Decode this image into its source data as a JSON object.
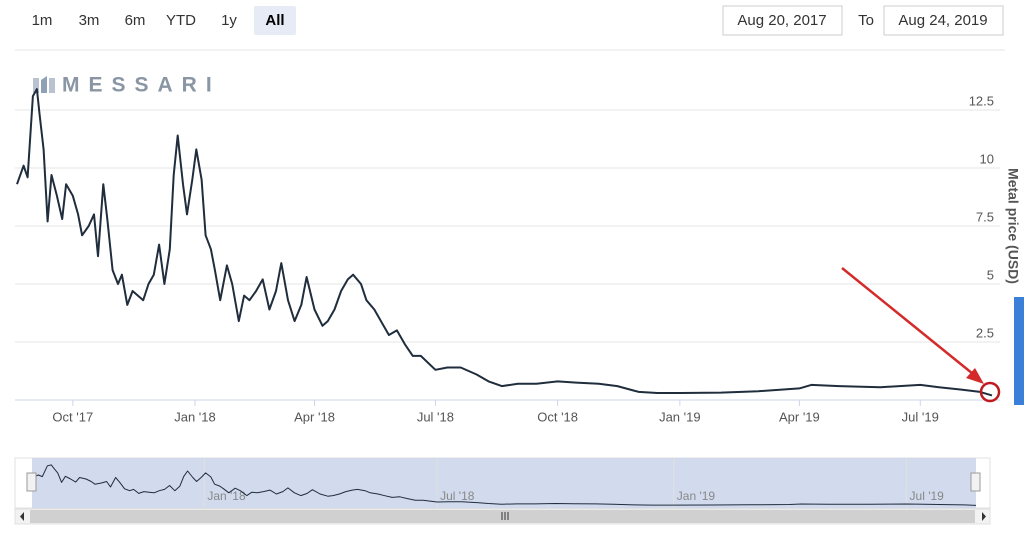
{
  "range_selector": {
    "buttons": [
      "1m",
      "3m",
      "6m",
      "YTD",
      "1y",
      "All"
    ]
  },
  "date_range": {
    "from": "Aug 20, 2017",
    "to_label": "To",
    "to": "Aug 24, 2019"
  },
  "watermark": "MESSARI",
  "chart_data": {
    "type": "line",
    "y_axis_label": "Metal price (USD)",
    "color": "#1f2d3d",
    "xlim": [
      "2017-08-20",
      "2019-08-24"
    ],
    "xticks": [
      {
        "value": "2017-10-01",
        "label": "Oct '17"
      },
      {
        "value": "2018-01-01",
        "label": "Jan '18"
      },
      {
        "value": "2018-04-01",
        "label": "Apr '18"
      },
      {
        "value": "2018-07-01",
        "label": "Jul '18"
      },
      {
        "value": "2018-10-01",
        "label": "Oct '18"
      },
      {
        "value": "2019-01-01",
        "label": "Jan '19"
      },
      {
        "value": "2019-04-01",
        "label": "Apr '19"
      },
      {
        "value": "2019-07-01",
        "label": "Jul '19"
      }
    ],
    "ylim": [
      0,
      15
    ],
    "yticks": [
      2.5,
      5,
      7.5,
      10,
      12.5
    ],
    "grid": true,
    "x": [
      "2017-08-20",
      "2017-08-25",
      "2017-08-28",
      "2017-09-01",
      "2017-09-04",
      "2017-09-06",
      "2017-09-09",
      "2017-09-12",
      "2017-09-15",
      "2017-09-19",
      "2017-09-23",
      "2017-09-26",
      "2017-10-01",
      "2017-10-05",
      "2017-10-08",
      "2017-10-13",
      "2017-10-17",
      "2017-10-20",
      "2017-10-24",
      "2017-10-27",
      "2017-10-31",
      "2017-11-04",
      "2017-11-07",
      "2017-11-11",
      "2017-11-15",
      "2017-11-19",
      "2017-11-23",
      "2017-11-27",
      "2017-12-01",
      "2017-12-05",
      "2017-12-09",
      "2017-12-13",
      "2017-12-16",
      "2017-12-19",
      "2017-12-23",
      "2017-12-26",
      "2017-12-30",
      "2018-01-02",
      "2018-01-06",
      "2018-01-09",
      "2018-01-13",
      "2018-01-16",
      "2018-01-20",
      "2018-01-25",
      "2018-01-29",
      "2018-02-03",
      "2018-02-07",
      "2018-02-11",
      "2018-02-16",
      "2018-02-21",
      "2018-02-26",
      "2018-03-03",
      "2018-03-07",
      "2018-03-12",
      "2018-03-17",
      "2018-03-22",
      "2018-03-26",
      "2018-04-01",
      "2018-04-07",
      "2018-04-11",
      "2018-04-16",
      "2018-04-21",
      "2018-04-26",
      "2018-04-30",
      "2018-05-06",
      "2018-05-10",
      "2018-05-16",
      "2018-05-20",
      "2018-05-27",
      "2018-06-02",
      "2018-06-08",
      "2018-06-14",
      "2018-06-20",
      "2018-07-01",
      "2018-07-10",
      "2018-07-20",
      "2018-08-01",
      "2018-08-10",
      "2018-08-20",
      "2018-09-01",
      "2018-09-15",
      "2018-10-01",
      "2018-10-15",
      "2018-11-01",
      "2018-11-15",
      "2018-12-01",
      "2018-12-15",
      "2019-01-01",
      "2019-02-01",
      "2019-03-01",
      "2019-04-01",
      "2019-04-10",
      "2019-05-01",
      "2019-06-01",
      "2019-07-01",
      "2019-07-15",
      "2019-08-01",
      "2019-08-15",
      "2019-08-24"
    ],
    "values": [
      9.3,
      10.1,
      9.6,
      13.1,
      13.4,
      12.3,
      10.8,
      7.7,
      9.7,
      8.8,
      7.8,
      9.3,
      8.8,
      8.0,
      7.1,
      7.5,
      8.0,
      6.2,
      9.3,
      7.8,
      5.6,
      5.0,
      5.4,
      4.1,
      4.7,
      4.5,
      4.3,
      5.0,
      5.4,
      6.7,
      5.0,
      6.5,
      9.7,
      11.4,
      9.3,
      8.0,
      9.5,
      10.8,
      9.5,
      7.1,
      6.5,
      5.6,
      4.3,
      5.8,
      5.0,
      3.4,
      4.5,
      4.3,
      4.7,
      5.2,
      3.9,
      4.7,
      5.9,
      4.3,
      3.4,
      4.1,
      5.3,
      3.9,
      3.2,
      3.4,
      3.9,
      4.7,
      5.2,
      5.4,
      5.0,
      4.3,
      3.9,
      3.5,
      2.8,
      3.0,
      2.4,
      1.9,
      1.9,
      1.3,
      1.4,
      1.4,
      1.1,
      0.8,
      0.6,
      0.7,
      0.7,
      0.8,
      0.75,
      0.7,
      0.6,
      0.35,
      0.3,
      0.3,
      0.32,
      0.38,
      0.5,
      0.65,
      0.6,
      0.55,
      0.65,
      0.55,
      0.45,
      0.35,
      0.2
    ]
  }
}
